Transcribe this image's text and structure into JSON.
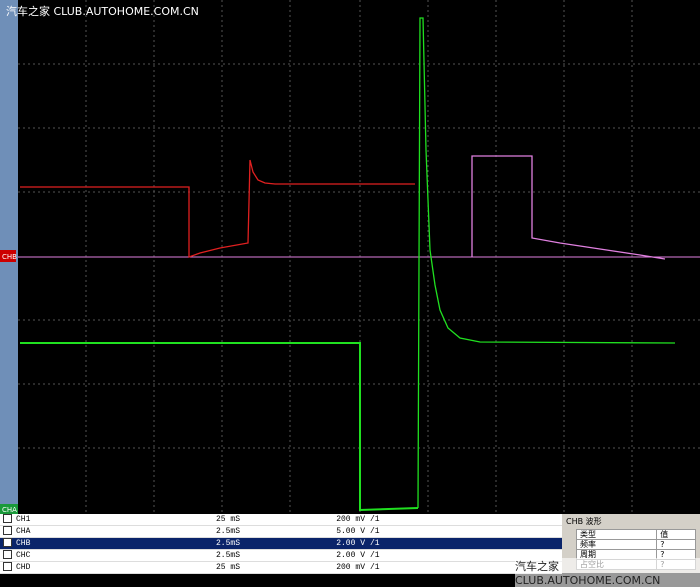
{
  "watermark_top": "汽车之家 CLUB.AUTOHOME.COM.CN",
  "watermark_bottom": "汽车之家 CLUB.AUTOHOME.COM.CN",
  "side_labels": {
    "chb": "CHB",
    "cha": "CHA"
  },
  "channels": {
    "rows": [
      [
        "CH1",
        "25 mS",
        "200 mV",
        "/1"
      ],
      [
        "CHA",
        "2.5mS",
        "5.00 V",
        "/1"
      ],
      [
        "CHB",
        "2.5mS",
        "2.00 V",
        "/1"
      ],
      [
        "CHC",
        "2.5mS",
        "2.00 V",
        "/1"
      ],
      [
        "CHD",
        "25 mS",
        "200 mV",
        "/1"
      ]
    ]
  },
  "panel": {
    "title": "CHB 波形",
    "headers": [
      "类型",
      "值"
    ],
    "rows": [
      [
        "频率",
        "?"
      ],
      [
        "周期",
        "?"
      ],
      [
        "占空比",
        "?"
      ]
    ]
  }
}
